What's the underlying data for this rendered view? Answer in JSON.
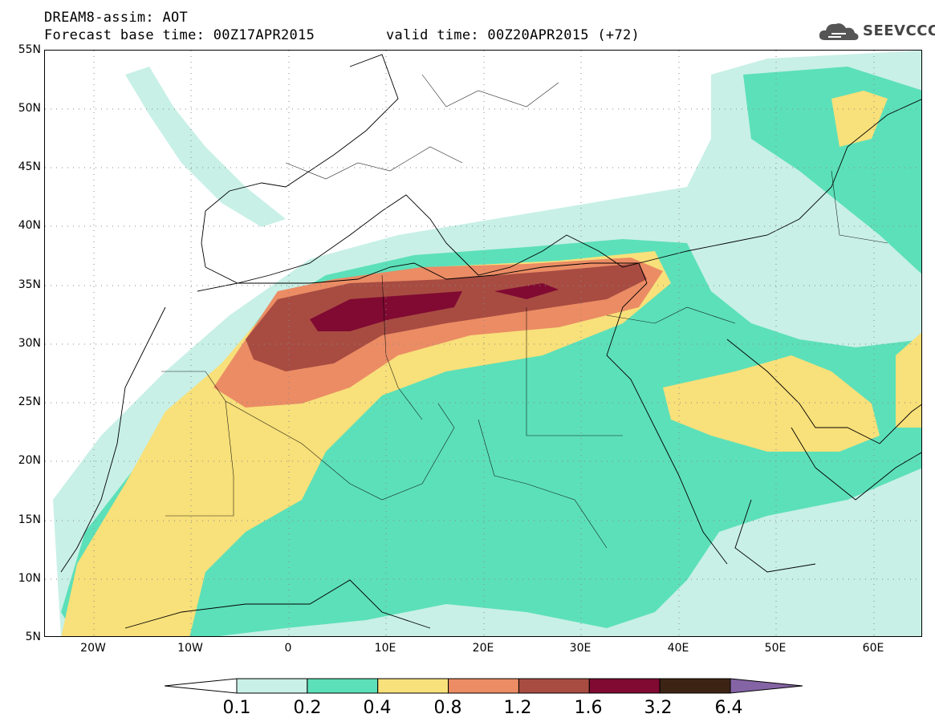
{
  "header": {
    "title": "DREAM8-assim: AOT",
    "base_time": "Forecast base time: 00Z17APR2015",
    "valid_time": "valid time: 00Z20APR2015 (+72)"
  },
  "logo": {
    "text": "SEEVCCC",
    "icon": "cloud-logo-icon"
  },
  "map": {
    "projection": "lat-lon",
    "lon_range": [
      -25,
      65
    ],
    "lat_range": [
      5,
      55
    ],
    "lat_labels": [
      "5N",
      "10N",
      "15N",
      "20N",
      "25N",
      "30N",
      "35N",
      "40N",
      "45N",
      "50N",
      "55N"
    ],
    "lon_labels": [
      "20W",
      "10W",
      "0",
      "10E",
      "20E",
      "30E",
      "40E",
      "50E",
      "60E"
    ],
    "grid": "dotted",
    "field": "Aerosol optical thickness (AOT)",
    "max_region": "Northern Libya / eastern Mediterranean band, AOT 1.6–3.2"
  },
  "colorbar": {
    "levels": [
      "0.1",
      "0.2",
      "0.4",
      "0.8",
      "1.2",
      "1.6",
      "3.2",
      "6.4"
    ],
    "colors": [
      "#ffffff",
      "#c8f0e6",
      "#5ce0b9",
      "#f8e07a",
      "#eb8c64",
      "#a84c42",
      "#800a32",
      "#3c2414",
      "#8464a4"
    ]
  }
}
